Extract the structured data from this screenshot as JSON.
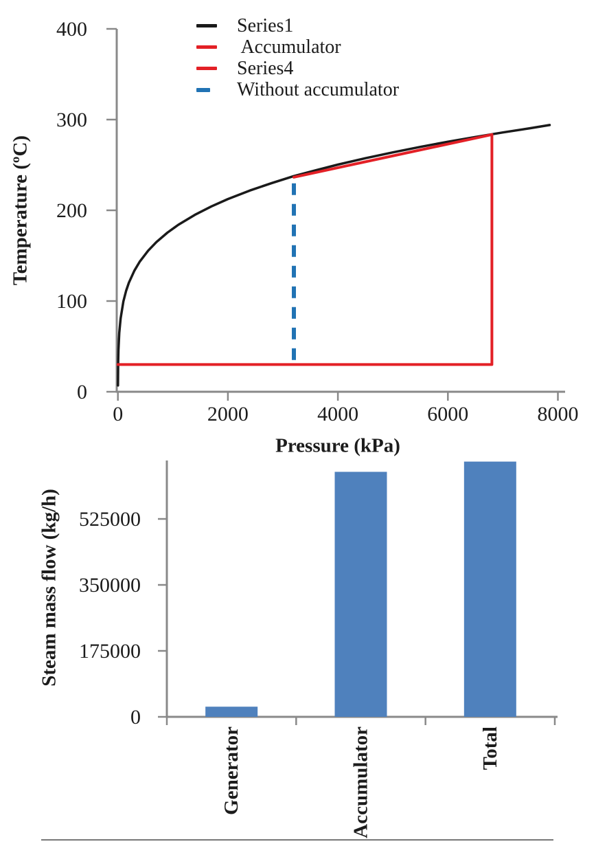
{
  "figure": {
    "background": "#ffffff",
    "description": "Two stacked charts: steam accumulator temperature-pressure diagram and steam mass flow bar chart"
  },
  "colors": {
    "axis": "#898989",
    "text": "#1c1c1c",
    "series_black": "#1a1a1a",
    "series_red": "#e32026",
    "series_blue": "#2173b4",
    "bar_blue": "#4f81bd",
    "page_rule": "#4a4a4a"
  },
  "chart_data": [
    {
      "type": "line",
      "title": "",
      "xlabel": "Pressure (kPa)",
      "ylabel": "Temperature (ºC)",
      "xlim": [
        0,
        8000
      ],
      "ylim": [
        0,
        400
      ],
      "xticks": [
        0,
        2000,
        4000,
        6000,
        8000
      ],
      "yticks": [
        0,
        100,
        200,
        300,
        400
      ],
      "grid": false,
      "legend_position": "top-center",
      "legend": [
        {
          "label": "Series1",
          "color": "#1a1a1a",
          "style": "solid"
        },
        {
          "label": " Accumulator",
          "color": "#e32026",
          "style": "solid"
        },
        {
          "label": "Series4",
          "color": "#e32026",
          "style": "solid"
        },
        {
          "label": "Without accumulator",
          "color": "#2173b4",
          "style": "dashed"
        }
      ],
      "series": [
        {
          "name": "Series1",
          "color": "#1a1a1a",
          "style": "solid",
          "width": 3.5,
          "points": [
            [
              1,
              7
            ],
            [
              5,
              33
            ],
            [
              10,
              46
            ],
            [
              25,
              65
            ],
            [
              50,
              81
            ],
            [
              100,
              99.6
            ],
            [
              150,
              111.4
            ],
            [
              200,
              120.2
            ],
            [
              300,
              133.5
            ],
            [
              400,
              143.6
            ],
            [
              550,
              155.5
            ],
            [
              700,
              165
            ],
            [
              900,
              175.4
            ],
            [
              1100,
              184.1
            ],
            [
              1400,
              195
            ],
            [
              1700,
              204.3
            ],
            [
              2000,
              212.4
            ],
            [
              2400,
              221.8
            ],
            [
              2800,
              230.1
            ],
            [
              3200,
              237.7
            ],
            [
              3600,
              244.2
            ],
            [
              4000,
              250.4
            ],
            [
              4500,
              257.4
            ],
            [
              5000,
              263.9
            ],
            [
              5500,
              269.9
            ],
            [
              6000,
              275.6
            ],
            [
              6500,
              280.8
            ],
            [
              7000,
              285.8
            ],
            [
              7500,
              290.5
            ],
            [
              7850,
              294
            ]
          ]
        },
        {
          "name": "Accumulator",
          "color": "#e32026",
          "style": "solid",
          "width": 4,
          "points": [
            [
              3200,
              236.5
            ],
            [
              6800,
              283.5
            ]
          ]
        },
        {
          "name": "Series4",
          "color": "#e32026",
          "style": "solid",
          "width": 4,
          "points": [
            [
              0,
              30
            ],
            [
              6800,
              30
            ],
            [
              6800,
              283.5
            ]
          ]
        },
        {
          "name": "Without accumulator",
          "color": "#2173b4",
          "style": "dashed",
          "width": 6,
          "points": [
            [
              3200,
              35
            ],
            [
              3200,
              236
            ]
          ]
        }
      ]
    },
    {
      "type": "bar",
      "title": "",
      "xlabel": "",
      "ylabel": "Steam mass flow (kg/h)",
      "categories": [
        "Generator",
        "Accumulator",
        "Total"
      ],
      "values": [
        27000,
        650000,
        677000
      ],
      "ylim": [
        0,
        680000
      ],
      "yticks": [
        0,
        175000,
        350000,
        525000
      ],
      "grid": false,
      "bar_color": "#4f81bd"
    }
  ]
}
